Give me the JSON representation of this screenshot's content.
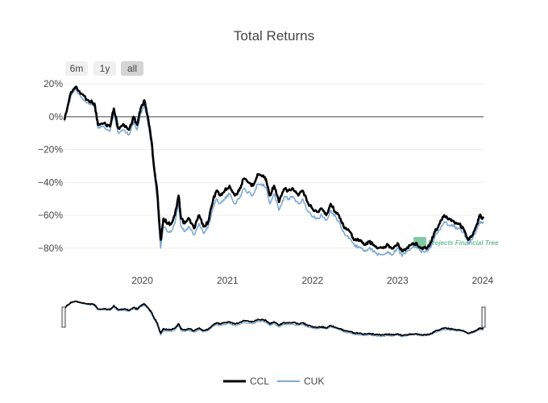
{
  "chart_data": {
    "type": "line",
    "title": "Total Returns",
    "range_selector": [
      {
        "label": "6m",
        "active": false
      },
      {
        "label": "1y",
        "active": false
      },
      {
        "label": "all",
        "active": true
      }
    ],
    "x_ticks": [
      "2020",
      "2021",
      "2022",
      "2023",
      "2024"
    ],
    "y_ticks": [
      "20%",
      "0%",
      "−20%",
      "−40%",
      "−60%",
      "−80%"
    ],
    "y_tick_values": [
      20,
      0,
      -20,
      -40,
      -60,
      -80
    ],
    "xlim": [
      "2019-02-01",
      "2024-01-05"
    ],
    "ylim": [
      -86,
      22
    ],
    "zero_line": true,
    "watermark": "Projects Financial Tree",
    "series": [
      {
        "name": "CCL",
        "color": "#000000",
        "x": [
          "2019-02-01",
          "2019-03-01",
          "2019-03-20",
          "2019-04-15",
          "2019-05-15",
          "2019-06-10",
          "2019-06-25",
          "2019-07-20",
          "2019-08-15",
          "2019-09-01",
          "2019-09-20",
          "2019-10-15",
          "2019-11-05",
          "2019-11-25",
          "2019-12-10",
          "2019-12-25",
          "2020-01-10",
          "2020-01-25",
          "2020-02-10",
          "2020-02-20",
          "2020-03-05",
          "2020-03-12",
          "2020-03-20",
          "2020-04-01",
          "2020-04-20",
          "2020-05-05",
          "2020-05-20",
          "2020-06-05",
          "2020-06-15",
          "2020-07-01",
          "2020-07-20",
          "2020-08-10",
          "2020-09-01",
          "2020-09-20",
          "2020-10-10",
          "2020-11-01",
          "2020-11-15",
          "2020-12-01",
          "2020-12-20",
          "2021-01-10",
          "2021-02-01",
          "2021-02-20",
          "2021-03-10",
          "2021-04-01",
          "2021-04-20",
          "2021-05-10",
          "2021-06-01",
          "2021-06-15",
          "2021-07-01",
          "2021-07-20",
          "2021-08-10",
          "2021-09-01",
          "2021-09-20",
          "2021-10-10",
          "2021-11-01",
          "2021-11-20",
          "2021-12-10",
          "2022-01-01",
          "2022-01-20",
          "2022-02-10",
          "2022-03-01",
          "2022-03-20",
          "2022-04-10",
          "2022-05-01",
          "2022-05-20",
          "2022-06-10",
          "2022-07-01",
          "2022-07-20",
          "2022-08-10",
          "2022-09-01",
          "2022-09-20",
          "2022-10-10",
          "2022-11-01",
          "2022-11-20",
          "2022-12-10",
          "2023-01-01",
          "2023-01-20",
          "2023-02-10",
          "2023-03-01",
          "2023-03-20",
          "2023-04-10",
          "2023-05-01",
          "2023-05-20",
          "2023-06-10",
          "2023-07-01",
          "2023-07-20",
          "2023-08-10",
          "2023-09-01",
          "2023-09-20",
          "2023-10-10",
          "2023-11-01",
          "2023-11-20",
          "2023-12-10",
          "2023-12-20",
          "2024-01-05"
        ],
        "values": [
          -2,
          15,
          18,
          14,
          10,
          8,
          -5,
          -4,
          -6,
          5,
          -7,
          -5,
          -8,
          0,
          -5,
          5,
          10,
          0,
          -15,
          -30,
          -45,
          -60,
          -75,
          -62,
          -65,
          -65,
          -60,
          -48,
          -62,
          -65,
          -62,
          -68,
          -60,
          -67,
          -64,
          -50,
          -45,
          -48,
          -45,
          -42,
          -48,
          -45,
          -38,
          -40,
          -42,
          -35,
          -36,
          -38,
          -48,
          -42,
          -52,
          -44,
          -45,
          -44,
          -48,
          -45,
          -52,
          -56,
          -58,
          -56,
          -60,
          -53,
          -58,
          -62,
          -68,
          -70,
          -75,
          -75,
          -78,
          -76,
          -78,
          -80,
          -80,
          -78,
          -80,
          -77,
          -82,
          -80,
          -78,
          -77,
          -80,
          -80,
          -78,
          -70,
          -65,
          -60,
          -62,
          -64,
          -65,
          -68,
          -75,
          -72,
          -65,
          -60,
          -62
        ]
      },
      {
        "name": "CUK",
        "color": "#7fa9d0",
        "x": [
          "2019-02-01",
          "2019-03-01",
          "2019-03-20",
          "2019-04-15",
          "2019-05-15",
          "2019-06-10",
          "2019-06-25",
          "2019-07-20",
          "2019-08-15",
          "2019-09-01",
          "2019-09-20",
          "2019-10-15",
          "2019-11-05",
          "2019-11-25",
          "2019-12-10",
          "2019-12-25",
          "2020-01-10",
          "2020-01-25",
          "2020-02-10",
          "2020-02-20",
          "2020-03-05",
          "2020-03-12",
          "2020-03-20",
          "2020-04-01",
          "2020-04-20",
          "2020-05-05",
          "2020-05-20",
          "2020-06-05",
          "2020-06-15",
          "2020-07-01",
          "2020-07-20",
          "2020-08-10",
          "2020-09-01",
          "2020-09-20",
          "2020-10-10",
          "2020-11-01",
          "2020-11-15",
          "2020-12-01",
          "2020-12-20",
          "2021-01-10",
          "2021-02-01",
          "2021-02-20",
          "2021-03-10",
          "2021-04-01",
          "2021-04-20",
          "2021-05-10",
          "2021-06-01",
          "2021-06-15",
          "2021-07-01",
          "2021-07-20",
          "2021-08-10",
          "2021-09-01",
          "2021-09-20",
          "2021-10-10",
          "2021-11-01",
          "2021-11-20",
          "2021-12-10",
          "2022-01-01",
          "2022-01-20",
          "2022-02-10",
          "2022-03-01",
          "2022-03-20",
          "2022-04-10",
          "2022-05-01",
          "2022-05-20",
          "2022-06-10",
          "2022-07-01",
          "2022-07-20",
          "2022-08-10",
          "2022-09-01",
          "2022-09-20",
          "2022-10-10",
          "2022-11-01",
          "2022-11-20",
          "2022-12-10",
          "2023-01-01",
          "2023-01-20",
          "2023-02-10",
          "2023-03-01",
          "2023-03-20",
          "2023-04-10",
          "2023-05-01",
          "2023-05-20",
          "2023-06-10",
          "2023-07-01",
          "2023-07-20",
          "2023-08-10",
          "2023-09-01",
          "2023-09-20",
          "2023-10-10",
          "2023-11-01",
          "2023-11-20",
          "2023-12-10",
          "2023-12-20",
          "2024-01-05"
        ],
        "values": [
          -3,
          13,
          17,
          12,
          8,
          6,
          -7,
          -6,
          -9,
          2,
          -10,
          -8,
          -11,
          -3,
          -8,
          2,
          7,
          -3,
          -18,
          -33,
          -50,
          -65,
          -80,
          -67,
          -70,
          -70,
          -65,
          -53,
          -67,
          -70,
          -67,
          -72,
          -65,
          -71,
          -67,
          -55,
          -50,
          -53,
          -50,
          -47,
          -53,
          -50,
          -44,
          -46,
          -48,
          -41,
          -41,
          -43,
          -53,
          -47,
          -57,
          -49,
          -50,
          -49,
          -53,
          -50,
          -57,
          -61,
          -62,
          -60,
          -63,
          -57,
          -61,
          -66,
          -72,
          -74,
          -79,
          -79,
          -82,
          -80,
          -82,
          -84,
          -84,
          -82,
          -84,
          -80,
          -85,
          -82,
          -80,
          -79,
          -82,
          -82,
          -80,
          -73,
          -69,
          -64,
          -66,
          -67,
          -68,
          -70,
          -77,
          -74,
          -68,
          -64,
          -65
        ]
      }
    ]
  }
}
